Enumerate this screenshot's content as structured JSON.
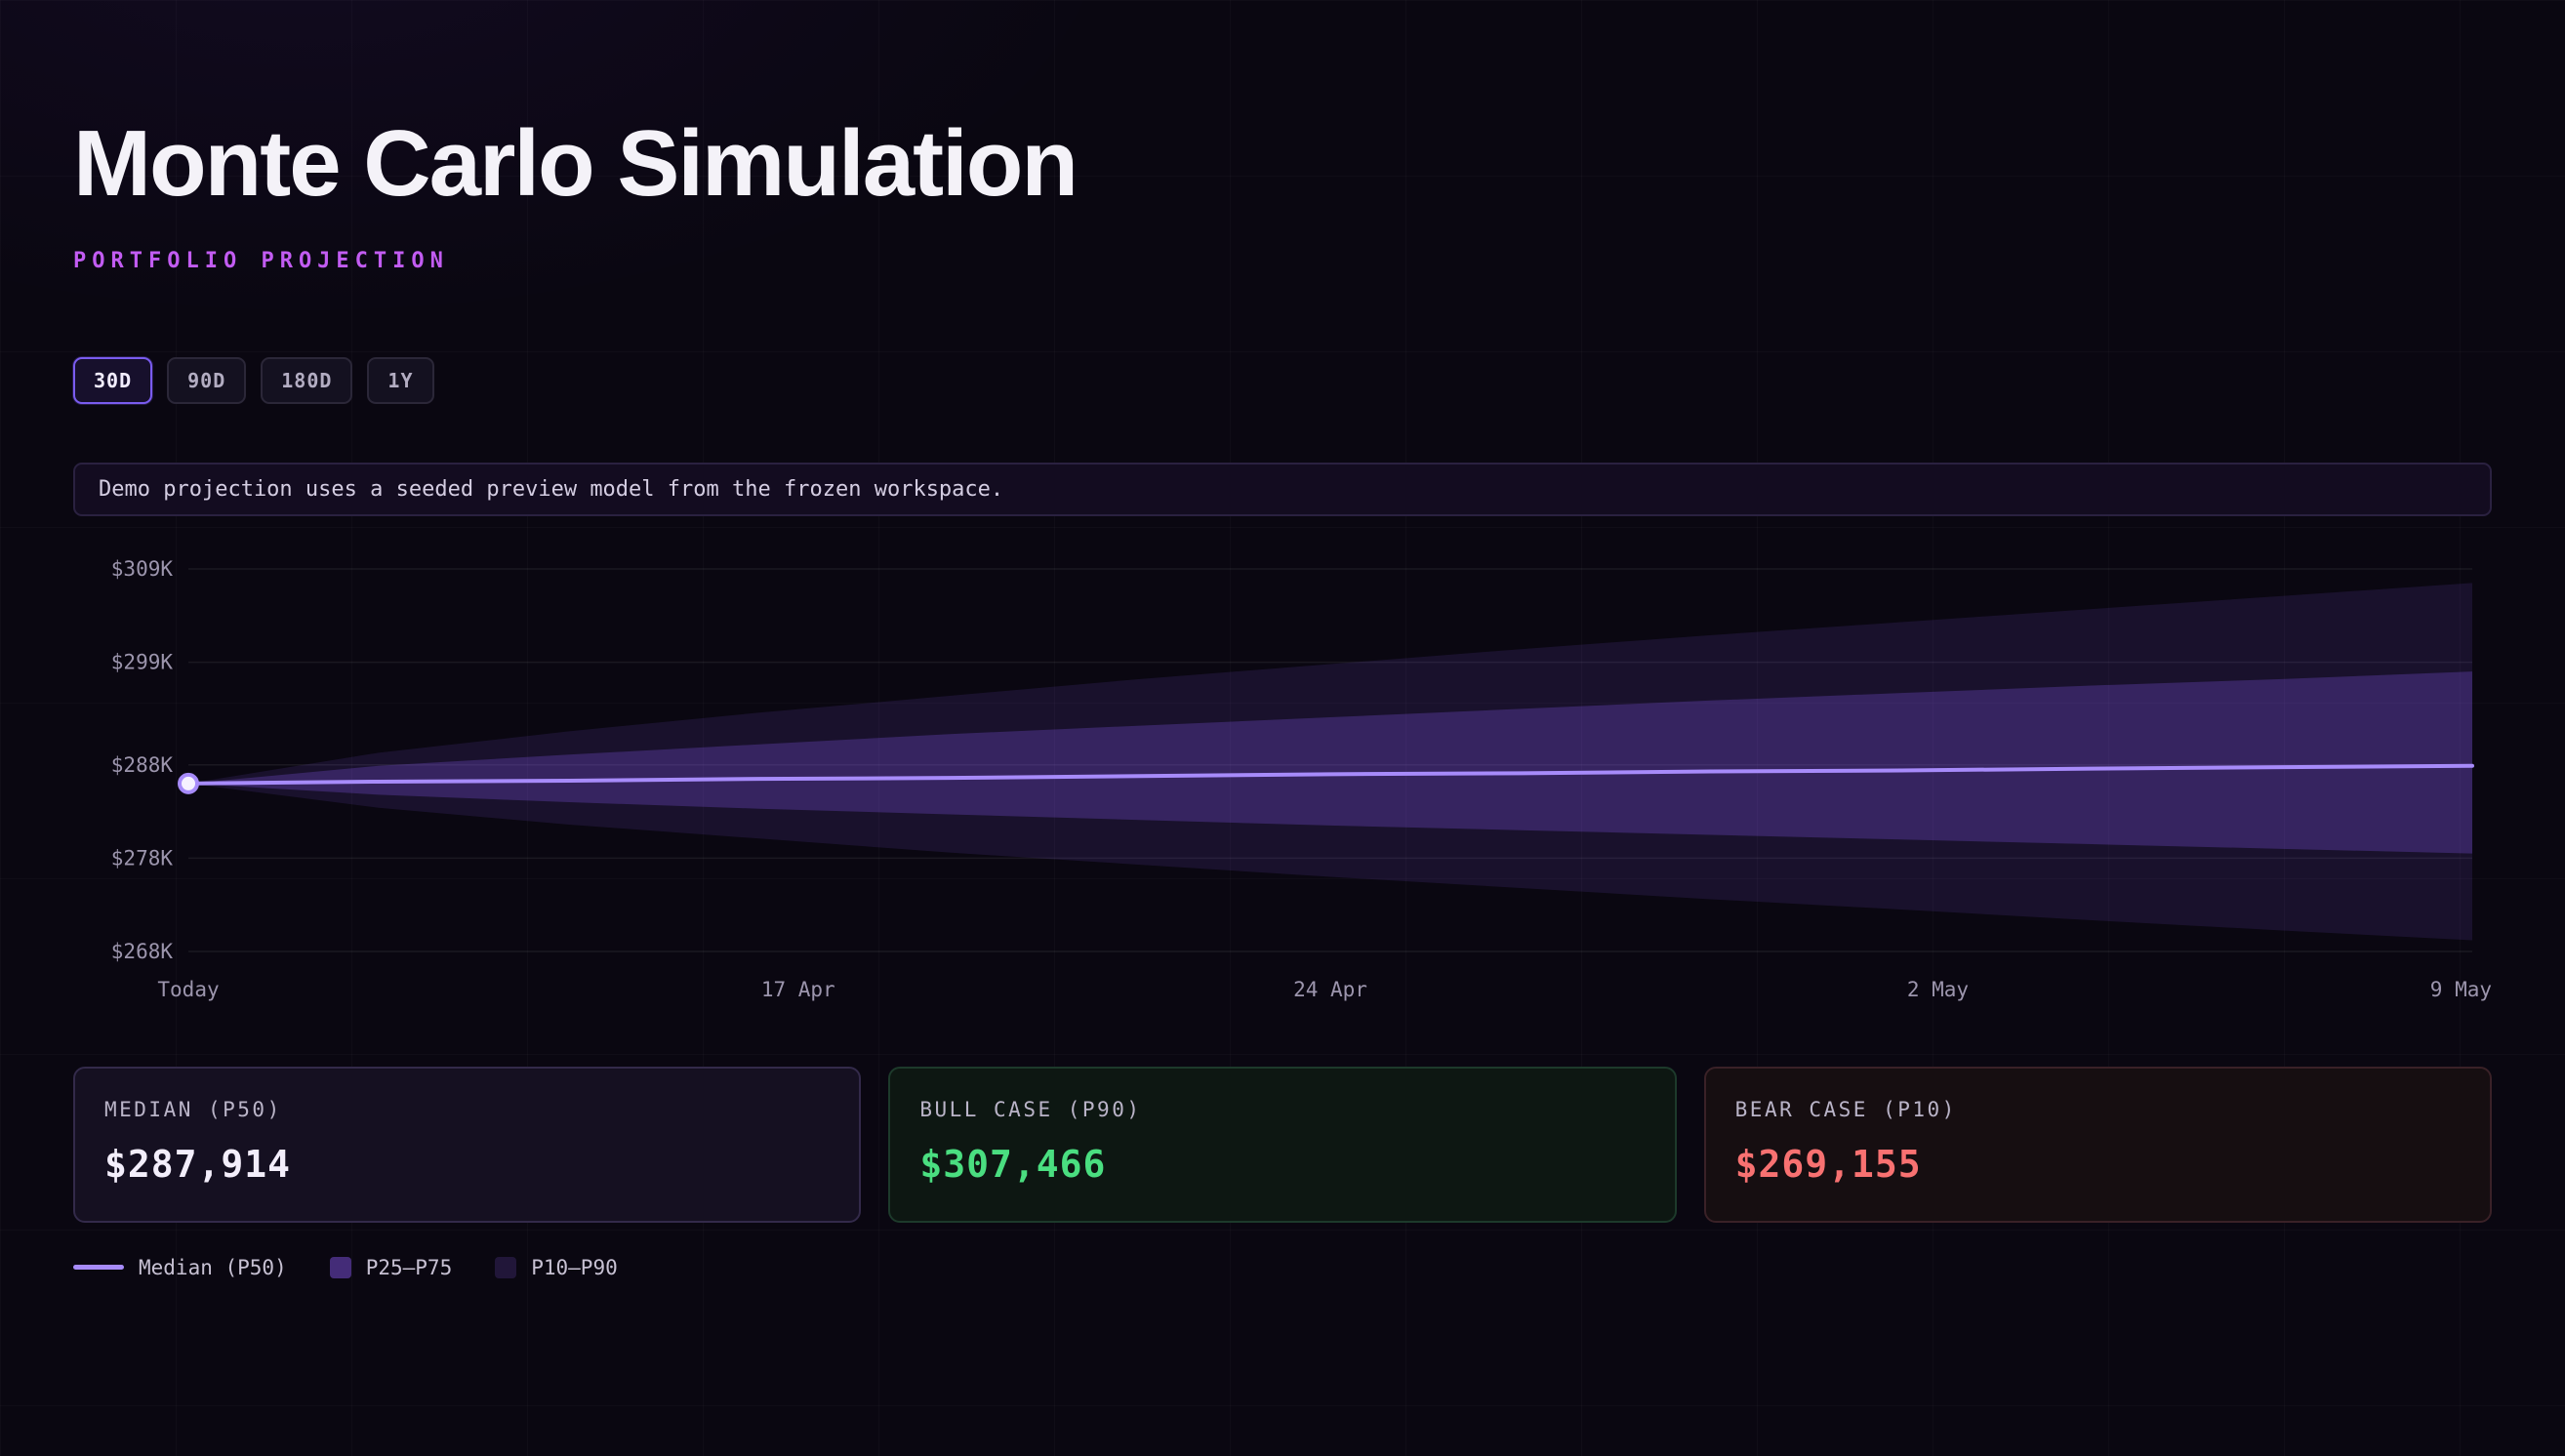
{
  "header": {
    "title": "Monte Carlo Simulation",
    "subtitle": "PORTFOLIO PROJECTION"
  },
  "theme": {
    "subtitle_color": "#c25cf2",
    "accent": "#a78bfa",
    "bull": "#4ade80",
    "bear": "#f87171"
  },
  "timeframes": [
    {
      "label": "30D",
      "active": true
    },
    {
      "label": "90D",
      "active": false
    },
    {
      "label": "180D",
      "active": false
    },
    {
      "label": "1Y",
      "active": false
    }
  ],
  "banner": {
    "text": "Demo projection uses a seeded preview model from the frozen workspace."
  },
  "chart_data": {
    "type": "area",
    "title": "Portfolio projection fan chart (Monte Carlo percentile bands)",
    "unit": "USD thousands",
    "grid": true,
    "y_domain": [
      268,
      309
    ],
    "y_ticks": [
      {
        "label": "$309K",
        "value": 309
      },
      {
        "label": "$299K",
        "value": 299
      },
      {
        "label": "$288K",
        "value": 288
      },
      {
        "label": "$278K",
        "value": 278
      },
      {
        "label": "$268K",
        "value": 268
      }
    ],
    "x_ticks": [
      {
        "label": "Today",
        "t": 0
      },
      {
        "label": "17 Apr",
        "t": 0.267
      },
      {
        "label": "24 Apr",
        "t": 0.5
      },
      {
        "label": "2 May",
        "t": 0.766
      },
      {
        "label": "9 May",
        "t": 1
      }
    ],
    "t": [
      0,
      0.0833,
      0.1667,
      0.25,
      0.3333,
      0.4167,
      0.5,
      0.5833,
      0.6667,
      0.75,
      0.8333,
      0.9167,
      1
    ],
    "series": {
      "p90": [
        286,
        289.3,
        291.6,
        293.6,
        295.4,
        297.2,
        298.8,
        300.4,
        301.9,
        303.3,
        304.7,
        306.1,
        307.5
      ],
      "p75": [
        286,
        287.9,
        289.1,
        290.2,
        291.3,
        292.2,
        293.1,
        294.0,
        294.9,
        295.7,
        296.5,
        297.2,
        298.0
      ],
      "p50": [
        286,
        286.2,
        286.3,
        286.5,
        286.6,
        286.8,
        287.0,
        287.1,
        287.3,
        287.4,
        287.6,
        287.75,
        287.9
      ],
      "p25": [
        286,
        284.8,
        284.0,
        283.3,
        282.7,
        282.1,
        281.5,
        281.0,
        280.5,
        280.0,
        279.5,
        279.0,
        278.5
      ],
      "p10": [
        286,
        283.4,
        281.6,
        280.1,
        278.6,
        277.3,
        276.0,
        274.8,
        273.6,
        272.5,
        271.35,
        270.25,
        269.2
      ]
    },
    "colors": {
      "median": "#a78bfa",
      "inner_band": "rgba(139,92,246,0.26)",
      "outer_band": "rgba(139,92,246,0.12)",
      "grid": "rgba(255,255,255,0.07)",
      "axis_text": "#9c95ad",
      "start_dot_fill": "#f5f1ff",
      "legend_inner": "rgba(139,92,246,0.45)",
      "legend_outer": "rgba(139,92,246,0.18)"
    }
  },
  "stats": {
    "cards": [
      {
        "id": "median",
        "label": "MEDIAN (P50)",
        "value": "$287,914",
        "value_color": "#f3eefb"
      },
      {
        "id": "bull",
        "label": "BULL CASE (P90)",
        "value": "$307,466",
        "value_color": "#4ade80"
      },
      {
        "id": "bear",
        "label": "BEAR CASE (P10)",
        "value": "$269,155",
        "value_color": "#f87171"
      }
    ]
  },
  "legend": {
    "items": [
      {
        "label": "Median (P50)",
        "swatch": "line"
      },
      {
        "label": "P25–P75",
        "swatch": "inner"
      },
      {
        "label": "P10–P90",
        "swatch": "outer"
      }
    ]
  }
}
